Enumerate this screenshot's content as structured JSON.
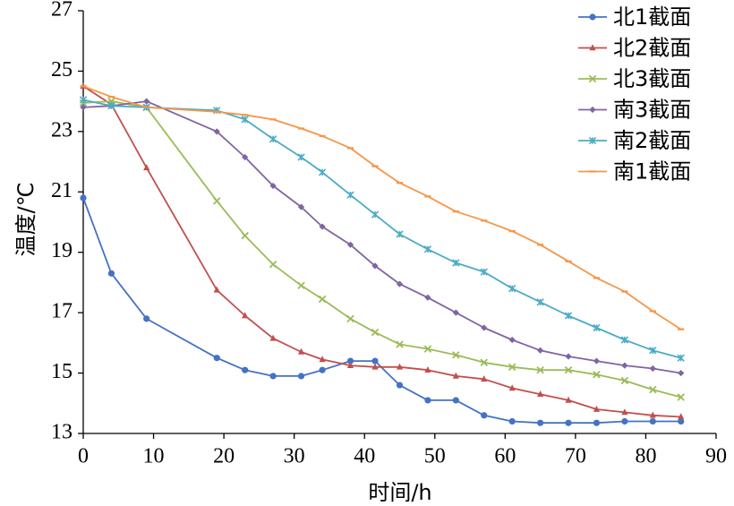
{
  "chart_data": {
    "type": "line",
    "xlabel": "时间/h",
    "ylabel": "温度/℃",
    "xlim": [
      0,
      90
    ],
    "ylim": [
      13,
      27
    ],
    "x_ticks": [
      0,
      10,
      20,
      30,
      40,
      50,
      60,
      70,
      80,
      90
    ],
    "y_ticks": [
      13,
      15,
      17,
      19,
      21,
      23,
      25,
      27
    ],
    "grid": false,
    "legend_position": "top-right",
    "series": [
      {
        "name": "北1截面",
        "color": "#4472C4",
        "marker": "circle",
        "x": [
          0,
          4,
          9,
          19,
          23,
          27,
          31,
          34,
          38,
          41.5,
          45,
          49,
          53,
          57,
          61,
          65,
          69,
          73,
          77,
          81,
          85
        ],
        "y": [
          20.8,
          18.3,
          16.8,
          15.5,
          15.1,
          14.9,
          14.9,
          15.1,
          15.4,
          15.4,
          14.6,
          14.1,
          14.1,
          13.6,
          13.4,
          13.35,
          13.35,
          13.35,
          13.4,
          13.4,
          13.4
        ]
      },
      {
        "name": "北2截面",
        "color": "#C0504D",
        "marker": "triangle",
        "x": [
          0,
          4,
          9,
          19,
          23,
          27,
          31,
          34,
          38,
          41.5,
          45,
          49,
          53,
          57,
          61,
          65,
          69,
          73,
          77,
          81,
          85
        ],
        "y": [
          24.5,
          23.9,
          21.8,
          17.75,
          16.9,
          16.15,
          15.7,
          15.45,
          15.25,
          15.2,
          15.2,
          15.1,
          14.9,
          14.8,
          14.5,
          14.3,
          14.1,
          13.8,
          13.7,
          13.6,
          13.55
        ]
      },
      {
        "name": "北3截面",
        "color": "#9BBB59",
        "marker": "x",
        "x": [
          0,
          4,
          9,
          19,
          23,
          27,
          31,
          34,
          38,
          41.5,
          45,
          49,
          53,
          57,
          61,
          65,
          69,
          73,
          77,
          81,
          85
        ],
        "y": [
          23.95,
          24.0,
          23.8,
          20.7,
          19.55,
          18.6,
          17.9,
          17.45,
          16.8,
          16.35,
          15.95,
          15.8,
          15.6,
          15.35,
          15.2,
          15.1,
          15.1,
          14.95,
          14.75,
          14.45,
          14.2
        ]
      },
      {
        "name": "南3截面",
        "color": "#8064A2",
        "marker": "diamond",
        "x": [
          0,
          4,
          9,
          19,
          23,
          27,
          31,
          34,
          38,
          41.5,
          45,
          49,
          53,
          57,
          61,
          65,
          69,
          73,
          77,
          81,
          85
        ],
        "y": [
          23.8,
          23.85,
          24.0,
          23.0,
          22.15,
          21.2,
          20.5,
          19.85,
          19.25,
          18.55,
          17.95,
          17.5,
          17.0,
          16.5,
          16.1,
          15.75,
          15.55,
          15.4,
          15.25,
          15.15,
          15.0
        ]
      },
      {
        "name": "南2截面",
        "color": "#4BACC6",
        "marker": "star",
        "x": [
          0,
          4,
          9,
          19,
          23,
          27,
          31,
          34,
          38,
          41.5,
          45,
          49,
          53,
          57,
          61,
          65,
          69,
          73,
          77,
          81,
          85
        ],
        "y": [
          24.05,
          23.85,
          23.8,
          23.7,
          23.4,
          22.75,
          22.15,
          21.65,
          20.9,
          20.25,
          19.6,
          19.1,
          18.65,
          18.35,
          17.8,
          17.35,
          16.9,
          16.5,
          16.1,
          15.75,
          15.5
        ]
      },
      {
        "name": "南1截面",
        "color": "#F79646",
        "marker": "dash",
        "x": [
          0,
          4,
          9,
          19,
          23,
          27,
          31,
          34,
          38,
          41.5,
          45,
          49,
          53,
          57,
          61,
          65,
          69,
          73,
          77,
          81,
          85
        ],
        "y": [
          24.5,
          24.15,
          23.8,
          23.65,
          23.55,
          23.4,
          23.1,
          22.85,
          22.45,
          21.85,
          21.3,
          20.85,
          20.35,
          20.05,
          19.7,
          19.25,
          18.7,
          18.15,
          17.7,
          17.05,
          16.45
        ]
      }
    ]
  }
}
